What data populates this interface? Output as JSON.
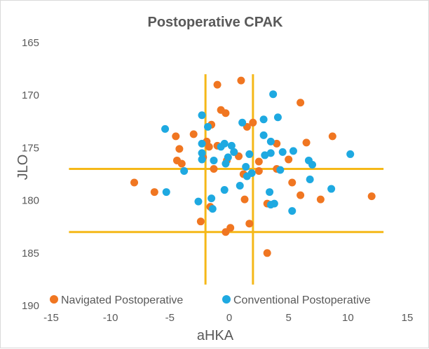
{
  "chart_data": {
    "type": "scatter",
    "title": "Postoperative CPAK",
    "xlabel": "aHKA",
    "ylabel": "JLO",
    "xlim": [
      -15,
      15
    ],
    "ylim": [
      165,
      190
    ],
    "y_reversed": true,
    "x_ticks": [
      -15,
      -10,
      -5,
      0,
      5,
      10,
      15
    ],
    "y_ticks": [
      165,
      170,
      175,
      180,
      185,
      190
    ],
    "x_tick_labels": [
      "-15",
      "-10",
      "-5",
      "0",
      "5",
      "10",
      "15"
    ],
    "y_tick_labels": [
      "165",
      "170",
      "175",
      "180",
      "185",
      "190"
    ],
    "grid": false,
    "legend": "bottom",
    "reference_lines": {
      "color": "#f5b818",
      "vertical_x": [
        -2,
        2
      ],
      "vertical_range": [
        168,
        188
      ],
      "horizontal_y": [
        177,
        183
      ],
      "horizontal_range": [
        -13.5,
        13
      ]
    },
    "series": [
      {
        "name": "Navigated Postoperative",
        "color": "#f07621",
        "points": [
          [
            1,
            168.6
          ],
          [
            -1,
            169
          ],
          [
            6,
            170.7
          ],
          [
            -0.7,
            171.4
          ],
          [
            -0.3,
            171.7
          ],
          [
            2,
            172.6
          ],
          [
            1.5,
            173
          ],
          [
            -1.5,
            172.8
          ],
          [
            -3,
            173.7
          ],
          [
            -4.5,
            173.9
          ],
          [
            8.7,
            173.9
          ],
          [
            -1.9,
            174.4
          ],
          [
            4,
            174.6
          ],
          [
            6.5,
            174.5
          ],
          [
            -1,
            174.8
          ],
          [
            -1.7,
            174.9
          ],
          [
            -4.2,
            175.1
          ],
          [
            0.4,
            175.4
          ],
          [
            0.8,
            175.8
          ],
          [
            -0.2,
            176.2
          ],
          [
            -2.2,
            175.9
          ],
          [
            -4.4,
            176.2
          ],
          [
            -4,
            176.5
          ],
          [
            2.5,
            176.3
          ],
          [
            5,
            176.1
          ],
          [
            -1.3,
            177
          ],
          [
            1.2,
            177.5
          ],
          [
            2.5,
            177.2
          ],
          [
            4,
            177
          ],
          [
            -8,
            178.3
          ],
          [
            5.3,
            178.3
          ],
          [
            -6.3,
            179.2
          ],
          [
            1.3,
            179.9
          ],
          [
            -1.6,
            180.6
          ],
          [
            3.2,
            180.3
          ],
          [
            6,
            179.5
          ],
          [
            7.7,
            179.9
          ],
          [
            12,
            179.6
          ],
          [
            -2.4,
            182
          ],
          [
            0.1,
            182.6
          ],
          [
            -0.3,
            183
          ],
          [
            1.7,
            182.2
          ],
          [
            3.2,
            185
          ]
        ]
      },
      {
        "name": "Conventional Postoperative",
        "color": "#1ea9e1",
        "points": [
          [
            3.7,
            169.9
          ],
          [
            -2.3,
            171.9
          ],
          [
            4.1,
            172.1
          ],
          [
            2.9,
            172.3
          ],
          [
            -1.8,
            173
          ],
          [
            1.1,
            172.6
          ],
          [
            -5.4,
            173.2
          ],
          [
            2.9,
            173.8
          ],
          [
            -2.3,
            174.6
          ],
          [
            -0.7,
            174.9
          ],
          [
            -0.4,
            174.6
          ],
          [
            0.2,
            174.8
          ],
          [
            -2.3,
            175.5
          ],
          [
            0.4,
            175.4
          ],
          [
            3.5,
            174.4
          ],
          [
            4.5,
            175.4
          ],
          [
            -0.1,
            175.9
          ],
          [
            1.7,
            175.6
          ],
          [
            5.4,
            175.3
          ],
          [
            3,
            175.7
          ],
          [
            3.5,
            175.5
          ],
          [
            10.2,
            175.6
          ],
          [
            -2.3,
            176.1
          ],
          [
            -1.3,
            176.2
          ],
          [
            -0.3,
            176.5
          ],
          [
            1.4,
            176.8
          ],
          [
            6.7,
            176.2
          ],
          [
            7,
            176.6
          ],
          [
            -3.8,
            177.2
          ],
          [
            4.3,
            177.1
          ],
          [
            1.9,
            177.4
          ],
          [
            1.5,
            177.7
          ],
          [
            0.9,
            178.6
          ],
          [
            6.8,
            178
          ],
          [
            -5.3,
            179.2
          ],
          [
            -0.4,
            179
          ],
          [
            3.4,
            179.2
          ],
          [
            8.6,
            178.9
          ],
          [
            -2.6,
            180.1
          ],
          [
            -1.5,
            179.8
          ],
          [
            3.8,
            180.3
          ],
          [
            -1.4,
            180.8
          ],
          [
            3.5,
            180.4
          ],
          [
            5.3,
            181
          ]
        ]
      }
    ]
  }
}
